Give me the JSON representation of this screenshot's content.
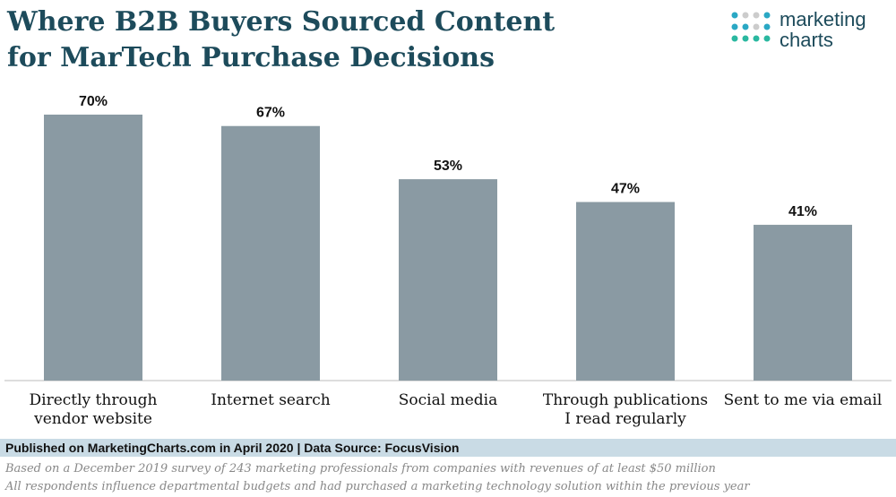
{
  "chart_data": {
    "type": "bar",
    "title_lines": [
      "Where B2B Buyers Sourced Content",
      "for MarTech Purchase Decisions"
    ],
    "categories": [
      "Directly through\nvendor website",
      "Internet search",
      "Social media",
      "Through publications\nI read regularly",
      "Sent to me via email"
    ],
    "values": [
      70,
      67,
      53,
      47,
      41
    ],
    "value_labels": [
      "70%",
      "67%",
      "53%",
      "47%",
      "41%"
    ],
    "color": "#8a9aa3"
  },
  "logo": {
    "line1": "marketing",
    "line2": "charts"
  },
  "footer": {
    "published": "Published on MarketingCharts.com in April 2020 | Data Source: FocusVision",
    "notes": [
      "Based on a December 2019 survey of 243 marketing professionals from companies with revenues of at least $50 million",
      "All respondents influence departmental budgets and had purchased a marketing technology solution within the previous year"
    ]
  }
}
